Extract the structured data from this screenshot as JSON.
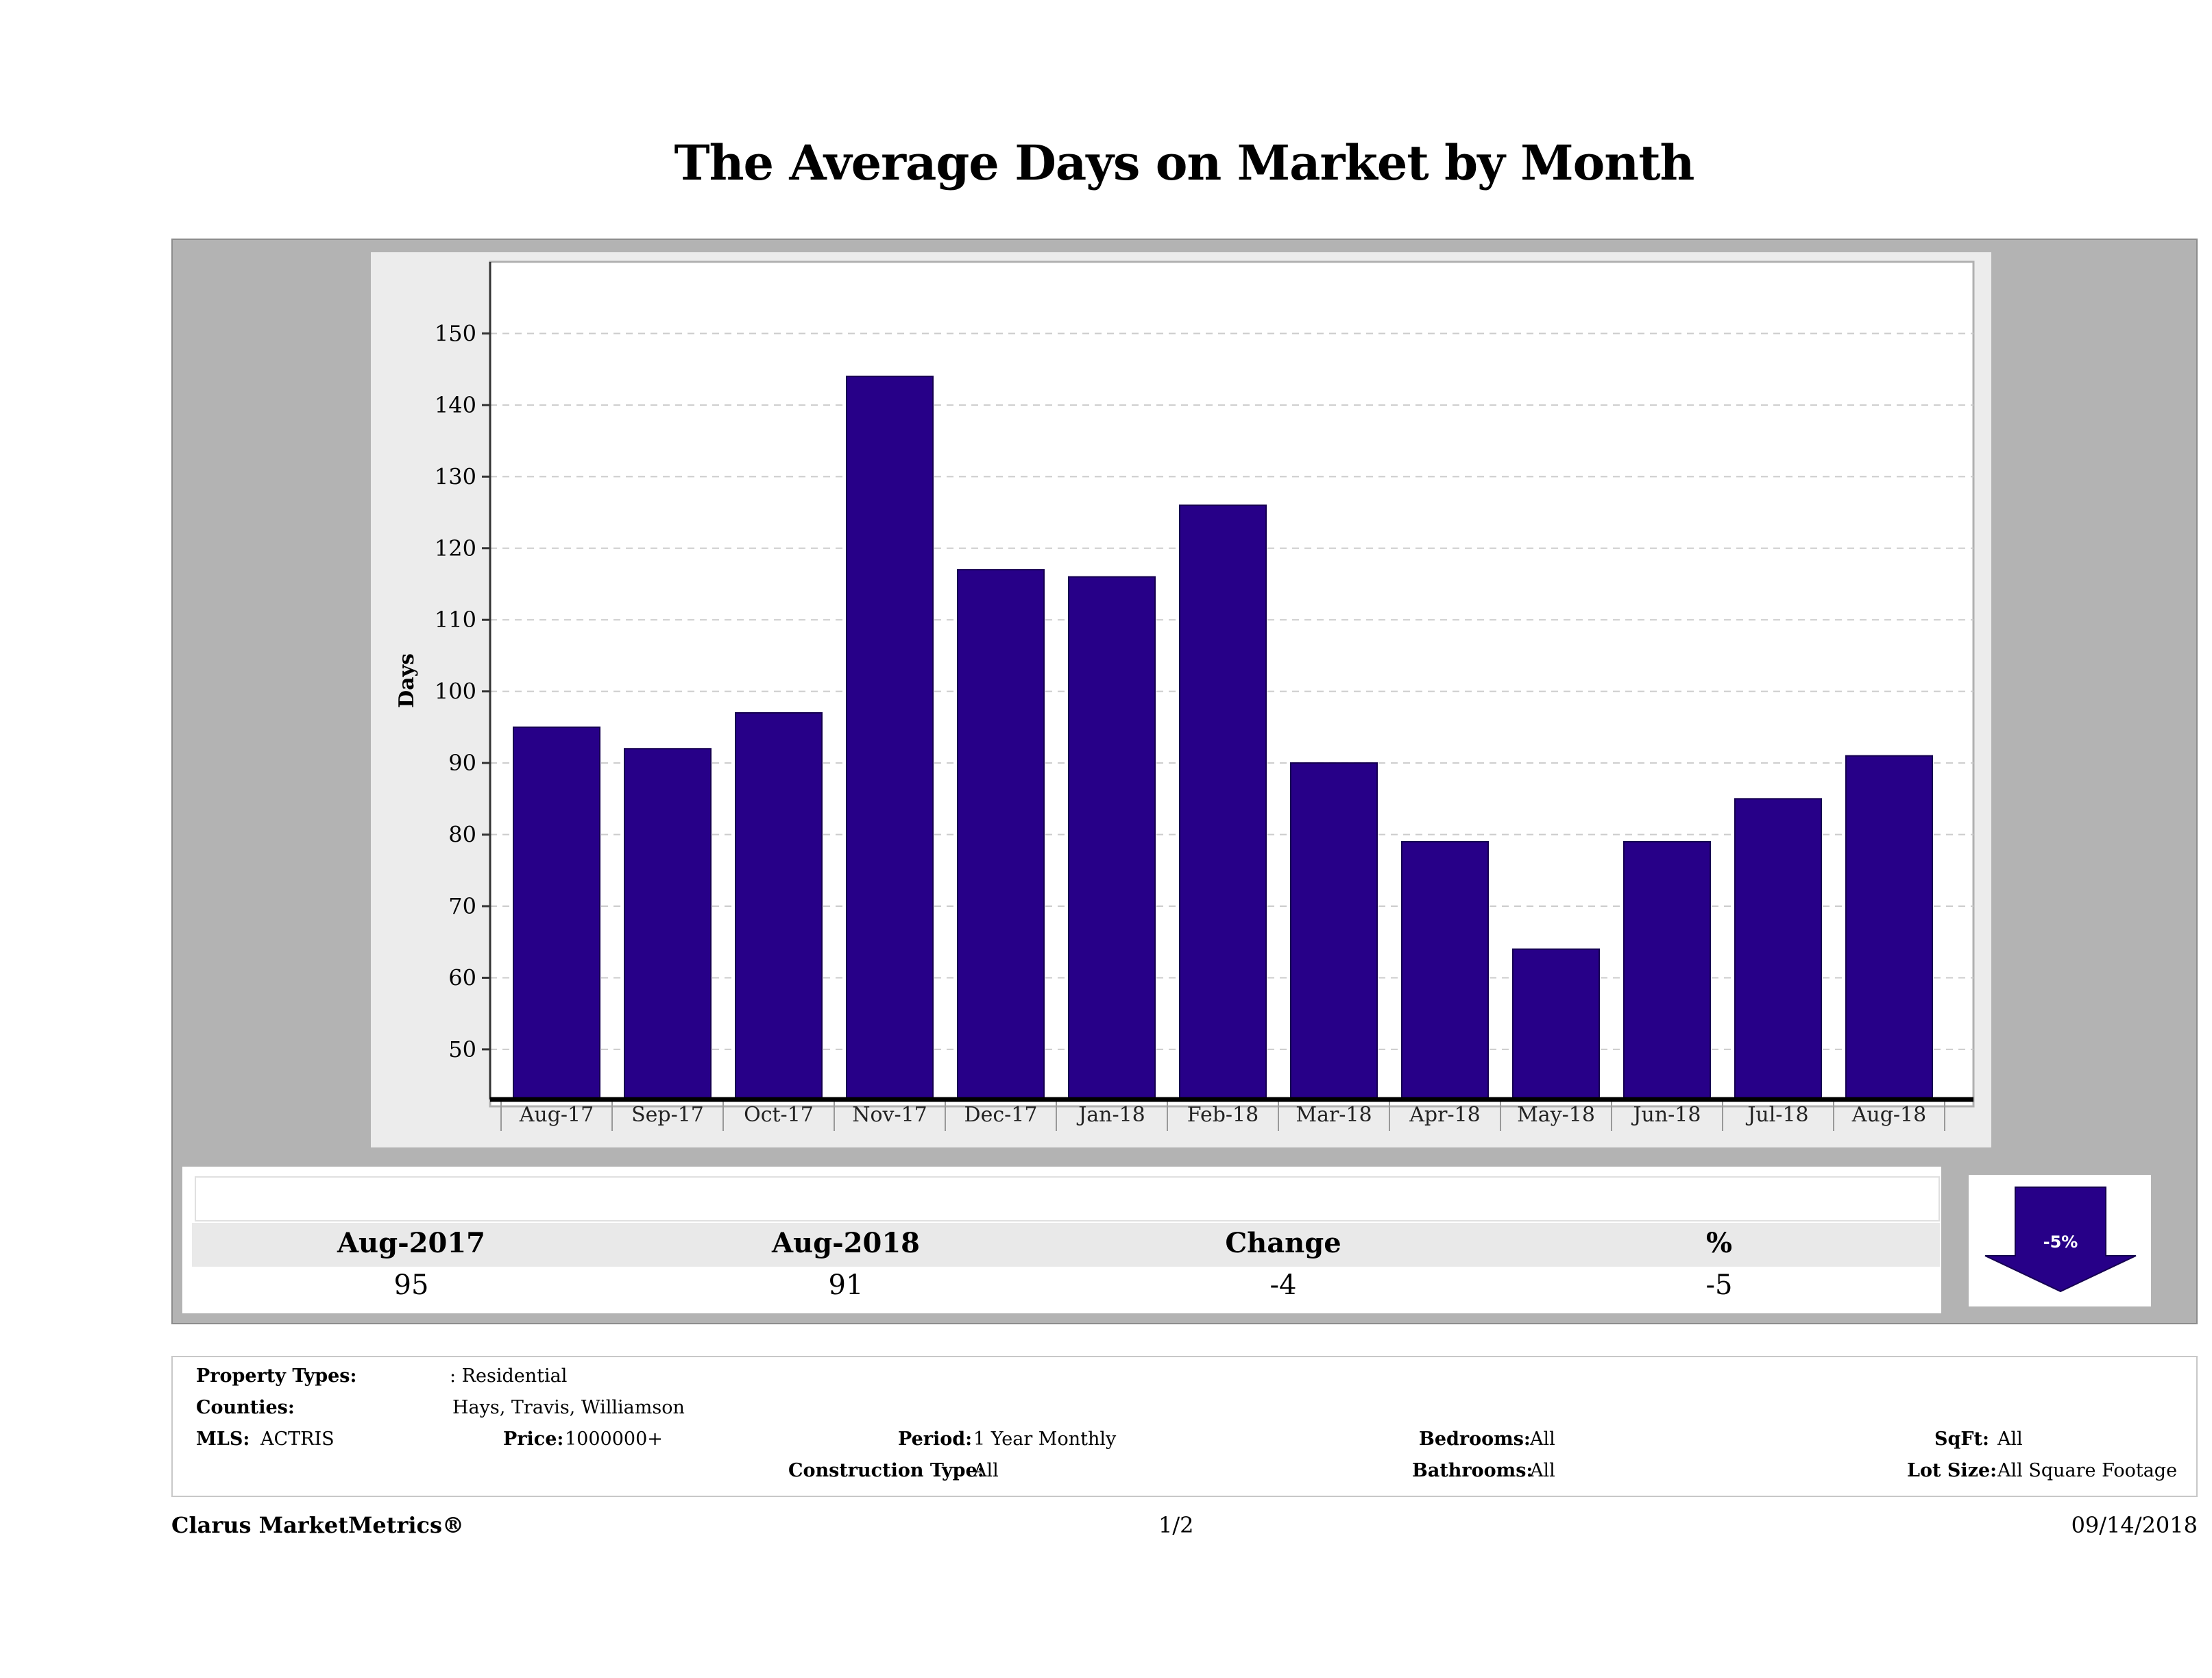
{
  "page_title": "The Average Days on Market by Month",
  "colors": {
    "bar": "#270088",
    "bar_border": "#150050",
    "panel": "#b3b3b3",
    "arrow": "#270088"
  },
  "chart_data": {
    "type": "bar",
    "title": "",
    "xlabel": "",
    "ylabel": "Days",
    "categories": [
      "Aug-17",
      "Sep-17",
      "Oct-17",
      "Nov-17",
      "Dec-17",
      "Jan-18",
      "Feb-18",
      "Mar-18",
      "Apr-18",
      "May-18",
      "Jun-18",
      "Jul-18",
      "Aug-18"
    ],
    "values": [
      95,
      92,
      97,
      144,
      117,
      116,
      126,
      90,
      79,
      64,
      79,
      85,
      91
    ],
    "ylim": [
      43,
      160
    ],
    "yticks": [
      50,
      60,
      70,
      80,
      90,
      100,
      110,
      120,
      130,
      140,
      150
    ],
    "grid": true,
    "legend": "none"
  },
  "summary": {
    "headers": [
      "Aug-2017",
      "Aug-2018",
      "Change",
      "%"
    ],
    "values": [
      "95",
      "91",
      "-4",
      "-5"
    ],
    "badge": "-5%",
    "badge_icon": "down-arrow-icon"
  },
  "filters": {
    "property_types_label": "Property Types:",
    "property_types_value": ": Residential",
    "counties_label": "Counties:",
    "counties_value": "Hays, Travis, Williamson",
    "mls_label": "MLS:",
    "mls_value": "ACTRIS",
    "price_label": "Price:",
    "price_value": "1000000+",
    "period_label": "Period:",
    "period_value": "1 Year Monthly",
    "construction_label": "Construction Type:",
    "construction_value": "All",
    "bedrooms_label": "Bedrooms:",
    "bedrooms_value": "All",
    "bathrooms_label": "Bathrooms:",
    "bathrooms_value": "All",
    "sqft_label": "SqFt:",
    "sqft_value": "All",
    "lotsize_label": "Lot Size:",
    "lotsize_value": "All Square Footage"
  },
  "footer": {
    "brand": "Clarus MarketMetrics®",
    "page": "1/2",
    "date": "09/14/2018"
  }
}
